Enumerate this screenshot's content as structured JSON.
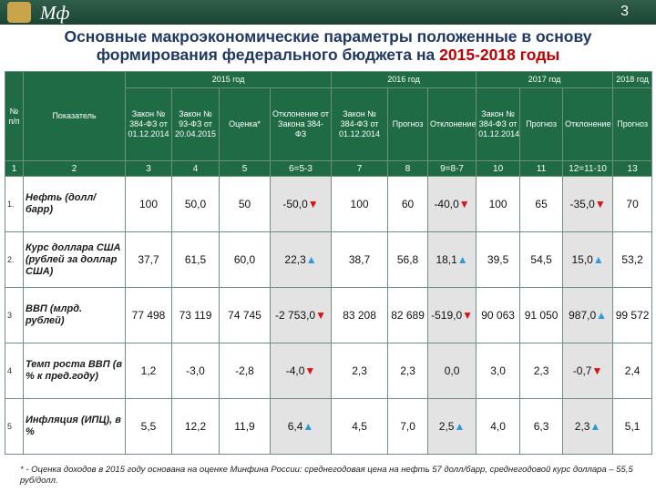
{
  "header": {
    "logo": "Мф",
    "page": "3"
  },
  "title": {
    "text": "Основные макроэкономические параметры положенные в основу формирования федерального бюджета на ",
    "highlight": "2015-2018 годы"
  },
  "table": {
    "head_no": "№ п/п",
    "head_name": "Показатель",
    "groups": [
      "2015 год",
      "2016 год",
      "2017 год",
      "2018 год"
    ],
    "subheads": [
      "Закон № 384-ФЗ от 01.12.2014",
      "Закон № 93-ФЗ от 20.04.2015",
      "Оценка*",
      "Отклонение от Закона 384-ФЗ",
      "Закон № 384-ФЗ от 01.12.2014",
      "Прогноз",
      "Отклонение",
      "Закон № 384-ФЗ от 01.12.2014",
      "Прогноз",
      "Отклонение",
      "Прогноз"
    ],
    "col_numbers": [
      "1",
      "2",
      "3",
      "4",
      "5",
      "6=5-3",
      "7",
      "8",
      "9=8-7",
      "10",
      "11",
      "12=11-10",
      "13"
    ],
    "rows": [
      {
        "no": "1.",
        "label": "Нефть (долл/барр)",
        "cells": [
          {
            "text": "100"
          },
          {
            "text": "50,0"
          },
          {
            "text": "50"
          },
          {
            "text": "-50,0",
            "arrow": "▼"
          },
          {
            "text": "100"
          },
          {
            "text": "60"
          },
          {
            "text": "-40,0",
            "arrow": "▼"
          },
          {
            "text": "100"
          },
          {
            "text": "65"
          },
          {
            "text": "-35,0",
            "arrow": "▼"
          },
          {
            "text": "70"
          }
        ]
      },
      {
        "no": "2.",
        "label": "Курс доллара США (рублей за доллар США)",
        "cells": [
          {
            "text": "37,7"
          },
          {
            "text": "61,5"
          },
          {
            "text": "60,0"
          },
          {
            "text": "22,3",
            "arrow": "▲"
          },
          {
            "text": "38,7"
          },
          {
            "text": "56,8"
          },
          {
            "text": "18,1",
            "arrow": "▲"
          },
          {
            "text": "39,5"
          },
          {
            "text": "54,5"
          },
          {
            "text": "15,0",
            "arrow": "▲"
          },
          {
            "text": "53,2"
          }
        ]
      },
      {
        "no": "3",
        "label": "ВВП (млрд. рублей)",
        "cells": [
          {
            "text": "77 498"
          },
          {
            "text": "73 119"
          },
          {
            "text": "74 745"
          },
          {
            "text": "-2 753,0",
            "arrow": "▼"
          },
          {
            "text": "83 208"
          },
          {
            "text": "82 689"
          },
          {
            "text": "-519,0",
            "arrow": "▼"
          },
          {
            "text": "90 063"
          },
          {
            "text": "91 050"
          },
          {
            "text": "987,0",
            "arrow": "▲"
          },
          {
            "text": "99 572"
          }
        ]
      },
      {
        "no": "4",
        "label": "Темп роста ВВП (в % к пред.году)",
        "cells": [
          {
            "text": "1,2"
          },
          {
            "text": "-3,0"
          },
          {
            "text": "-2,8"
          },
          {
            "text": "-4,0",
            "arrow": "▼"
          },
          {
            "text": "2,3"
          },
          {
            "text": "2,3"
          },
          {
            "text": "0,0"
          },
          {
            "text": "3,0"
          },
          {
            "text": "2,3"
          },
          {
            "text": "-0,7",
            "arrow": "▼"
          },
          {
            "text": "2,4"
          }
        ]
      },
      {
        "no": "5",
        "label": "Инфляция (ИПЦ), в %",
        "cells": [
          {
            "text": "5,5"
          },
          {
            "text": "12,2"
          },
          {
            "text": "11,9"
          },
          {
            "text": "6,4",
            "arrow": "▲"
          },
          {
            "text": "4,5"
          },
          {
            "text": "7,0"
          },
          {
            "text": "2,5",
            "arrow": "▲"
          },
          {
            "text": "4,0"
          },
          {
            "text": "6,3"
          },
          {
            "text": "2,3",
            "arrow": "▲"
          },
          {
            "text": "5,1"
          }
        ]
      }
    ]
  },
  "footnote": "* - Оценка доходов в 2015 году основана на оценке Минфина России: среднегодовая цена на нефть 57 долл/барр, среднегодовой курс доллара – 55,5 руб/долл."
}
